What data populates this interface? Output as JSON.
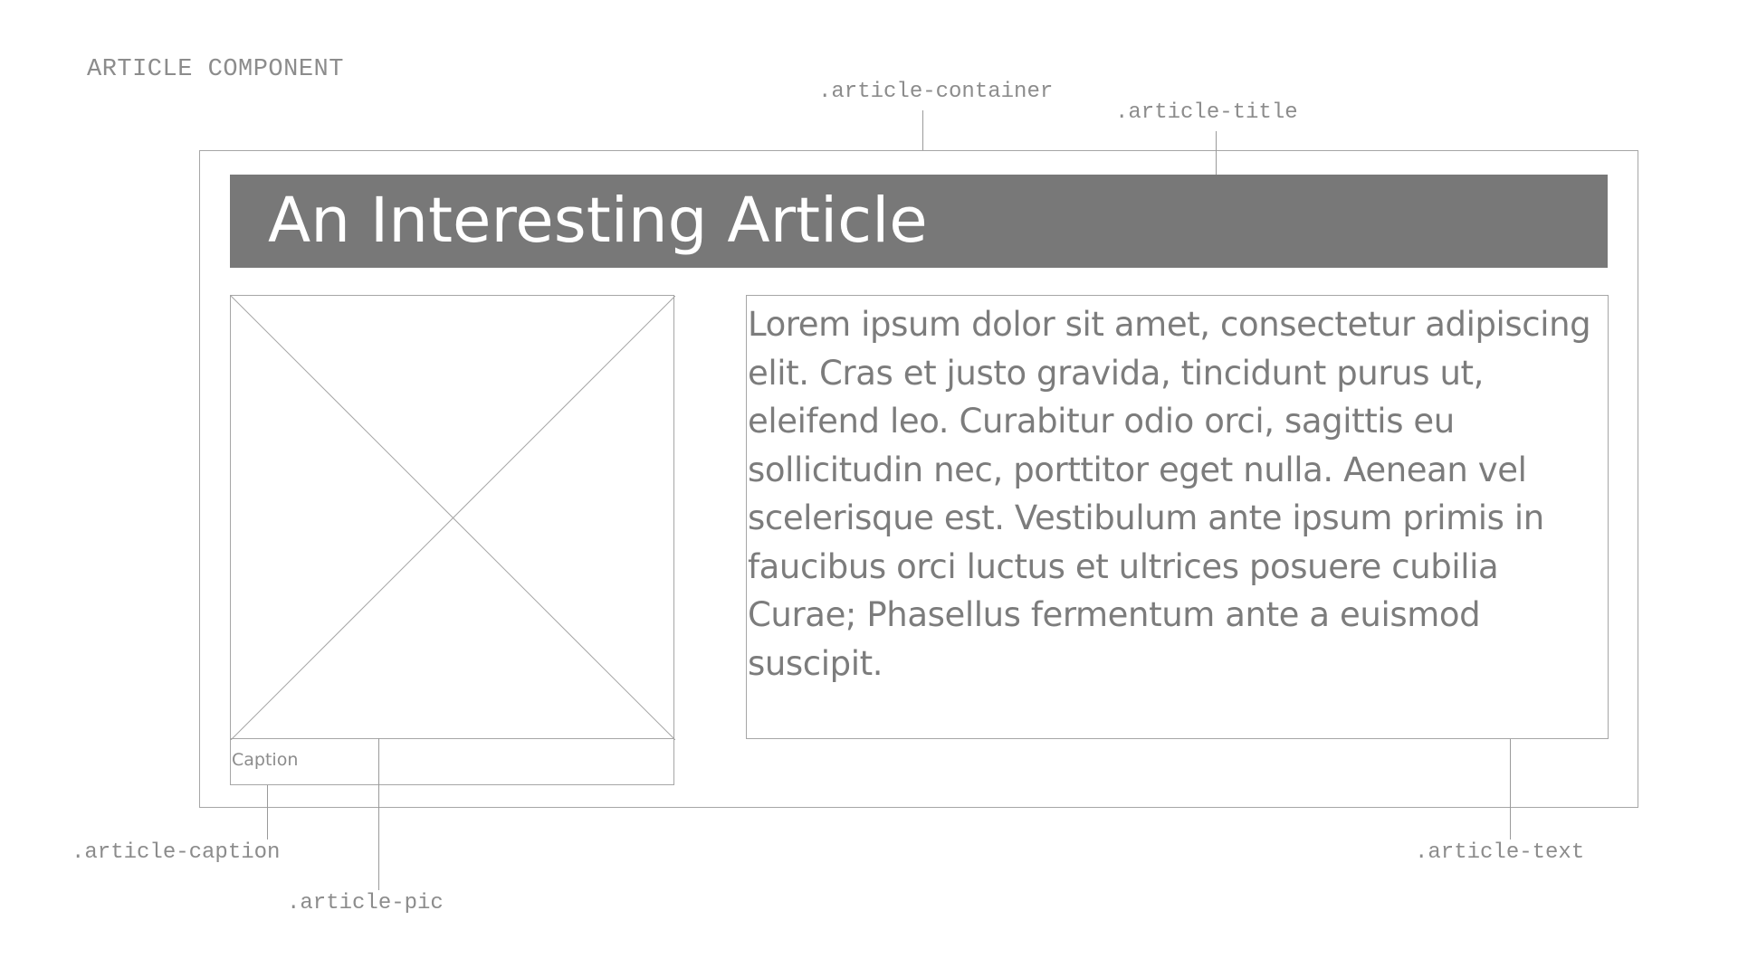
{
  "heading": "ARTICLE COMPONENT",
  "callouts": {
    "container": ".article-container",
    "title": ".article-title",
    "caption": ".article-caption",
    "pic": ".article-pic",
    "text": ".article-text"
  },
  "article": {
    "title": "An Interesting Article",
    "caption": "Caption",
    "body": "Lorem ipsum dolor sit amet, consectetur adipiscing elit. Cras et justo gravida, tincidunt purus ut, eleifend leo. Curabitur odio orci, sagittis eu sollicitudin nec, porttitor eget nulla. Aenean vel scelerisque est. Vestibulum ante ipsum primis in faucibus orci luctus et ultrices posuere cubilia Curae; Phasellus fermentum ante a euismod suscipit."
  },
  "colors": {
    "title_bar": "#787878",
    "outline": "#a6a6a6",
    "label_text": "#8c8c8c",
    "body_text": "#7c7c7c"
  }
}
